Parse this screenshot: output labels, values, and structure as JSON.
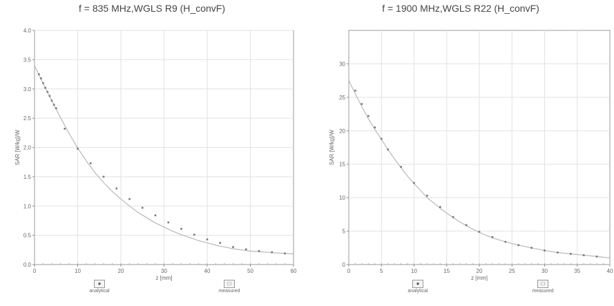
{
  "chart_data": [
    {
      "type": "line",
      "title": "f = 835 MHz,WGLS R9 (H_convF)",
      "xlabel": "z [mm]",
      "ylabel": "SAR [W/kg]/W",
      "xlim": [
        0,
        60
      ],
      "ylim": [
        0,
        4.0
      ],
      "xticks": [
        "0",
        "10",
        "20",
        "30",
        "40",
        "50",
        "60"
      ],
      "yticks": [
        "0.0",
        "0.5",
        "1.0",
        "1.5",
        "2.0",
        "2.5",
        "3.0",
        "3.5",
        "4.0"
      ],
      "grid": true,
      "legend": [
        {
          "label": "analytical",
          "glyph": "●"
        },
        {
          "label": "measured",
          "glyph": "□"
        }
      ],
      "series": [
        {
          "name": "analytical",
          "x": [
            0,
            2,
            4,
            6,
            8,
            10,
            12,
            14,
            16,
            18,
            20,
            22,
            24,
            26,
            28,
            30,
            32,
            34,
            36,
            38,
            40,
            42,
            44,
            46,
            48,
            50,
            52,
            54,
            56,
            58,
            60
          ],
          "y": [
            3.4,
            3.09,
            2.8,
            2.51,
            2.24,
            1.99,
            1.77,
            1.57,
            1.4,
            1.25,
            1.12,
            1.0,
            0.89,
            0.8,
            0.71,
            0.64,
            0.57,
            0.51,
            0.46,
            0.41,
            0.37,
            0.33,
            0.3,
            0.27,
            0.25,
            0.23,
            0.22,
            0.21,
            0.2,
            0.19,
            0.18
          ]
        },
        {
          "name": "measured",
          "x": [
            1,
            1.5,
            2,
            2.5,
            3,
            3.5,
            4,
            4.5,
            5,
            7,
            10,
            13,
            16,
            19,
            22,
            25,
            28,
            31,
            34,
            37,
            40,
            43,
            46,
            49,
            52,
            55,
            58
          ],
          "y": [
            3.25,
            3.18,
            3.1,
            3.02,
            2.95,
            2.88,
            2.8,
            2.73,
            2.67,
            2.32,
            1.98,
            1.73,
            1.5,
            1.3,
            1.12,
            0.97,
            0.84,
            0.72,
            0.61,
            0.51,
            0.43,
            0.37,
            0.3,
            0.26,
            0.23,
            0.21,
            0.19
          ]
        }
      ]
    },
    {
      "type": "line",
      "title": "f = 1900 MHz,WGLS R22 (H_convF)",
      "xlabel": "z [mm]",
      "ylabel": "SAR [W/kg]/W",
      "xlim": [
        0,
        40
      ],
      "ylim": [
        0,
        35
      ],
      "xticks": [
        "0",
        "5",
        "10",
        "15",
        "20",
        "25",
        "30",
        "35",
        "40"
      ],
      "yticks": [
        "0",
        "5",
        "10",
        "15",
        "20",
        "25",
        "30"
      ],
      "grid": true,
      "legend": [
        {
          "label": "analytical",
          "glyph": "●"
        },
        {
          "label": "measured",
          "glyph": "□"
        }
      ],
      "series": [
        {
          "name": "analytical",
          "x": [
            0,
            1,
            2,
            3,
            4,
            5,
            6,
            7,
            8,
            9,
            10,
            12,
            14,
            16,
            18,
            20,
            22,
            24,
            26,
            28,
            30,
            32,
            34,
            36,
            38,
            40
          ],
          "y": [
            27.5,
            25.5,
            23.6,
            21.8,
            20.2,
            18.7,
            17.2,
            15.8,
            14.5,
            13.2,
            12.1,
            10.0,
            8.4,
            7.0,
            5.8,
            4.8,
            4.0,
            3.4,
            2.9,
            2.5,
            2.1,
            1.8,
            1.6,
            1.4,
            1.2,
            1.0
          ]
        },
        {
          "name": "measured",
          "x": [
            1,
            2,
            3,
            4,
            5,
            6,
            8,
            10,
            12,
            14,
            16,
            18,
            20,
            22,
            24,
            26,
            28,
            30,
            32,
            34,
            36,
            38
          ],
          "y": [
            26.0,
            24.0,
            22.2,
            20.5,
            18.8,
            17.2,
            14.6,
            12.2,
            10.3,
            8.6,
            7.1,
            5.9,
            4.9,
            4.1,
            3.4,
            2.9,
            2.5,
            2.1,
            1.8,
            1.6,
            1.4,
            1.2
          ]
        }
      ]
    }
  ]
}
